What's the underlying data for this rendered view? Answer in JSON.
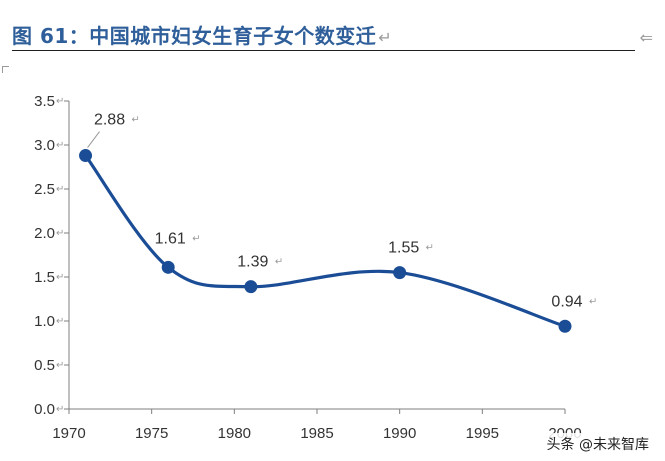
{
  "header": {
    "title": "图 61：中国城市妇女生育子女个数变迁",
    "edit_mark": "↵"
  },
  "watermark": "头条 @未来智库",
  "chart_data": {
    "type": "line",
    "title": "",
    "xlabel": "",
    "ylabel": "",
    "x_ticks": [
      1970,
      1975,
      1980,
      1985,
      1990,
      1995,
      2000
    ],
    "y_ticks": [
      "0.0",
      "0.5",
      "1.0",
      "1.5",
      "2.0",
      "2.5",
      "3.0",
      "3.5"
    ],
    "xlim": [
      1970,
      2000
    ],
    "ylim": [
      0,
      3.5
    ],
    "grid": false,
    "series": [
      {
        "color": "#1a4d96",
        "points": [
          {
            "x": 1971,
            "y": 2.88,
            "label": "2.88"
          },
          {
            "x": 1976,
            "y": 1.61,
            "label": "1.61"
          },
          {
            "x": 1981,
            "y": 1.39,
            "label": "1.39"
          },
          {
            "x": 1990,
            "y": 1.55,
            "label": "1.55"
          },
          {
            "x": 2000,
            "y": 0.94,
            "label": "0.94"
          }
        ]
      }
    ]
  }
}
